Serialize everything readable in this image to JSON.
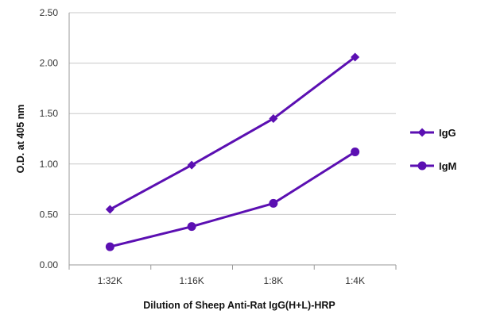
{
  "chart_data": {
    "type": "line",
    "title": "",
    "xlabel": "Dilution of Sheep Anti-Rat IgG(H+L)-HRP",
    "ylabel": "O.D. at 405 nm",
    "categories": [
      "1:32K",
      "1:16K",
      "1:8K",
      "1:4K"
    ],
    "ylim": [
      0,
      2.5
    ],
    "yticks": [
      "0.00",
      "0.50",
      "1.00",
      "1.50",
      "2.00",
      "2.50"
    ],
    "grid": "horizontal",
    "legend_position": "right",
    "series": [
      {
        "name": "IgG",
        "marker": "diamond",
        "color": "#5b0fb2",
        "values": [
          0.55,
          0.99,
          1.45,
          2.06
        ]
      },
      {
        "name": "IgM",
        "marker": "circle",
        "color": "#5b0fb2",
        "values": [
          0.18,
          0.38,
          0.61,
          1.12
        ]
      }
    ]
  }
}
